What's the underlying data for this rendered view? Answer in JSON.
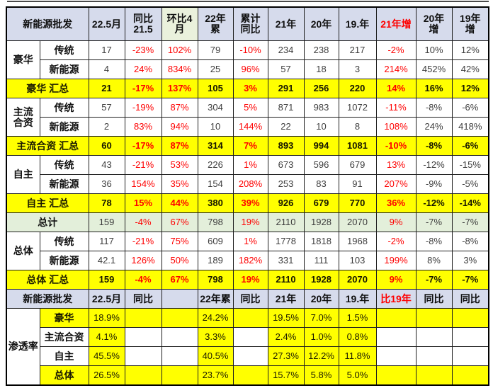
{
  "colors": {
    "header_bg": "#D6DBEC",
    "header_green_bg": "#EAF1DC",
    "total_row_bg": "#E3EFDA",
    "highlight_bg": "#FFFF00",
    "red_text": "#FE0000",
    "value_text": "#3D3D3D",
    "label_text": "#101010"
  },
  "chart_data": {
    "type": "table",
    "title": "新能源批发",
    "red_value_cols": [
      1,
      2,
      4,
      8
    ],
    "red_header_cols": [
      8
    ],
    "green_header_cols": [
      2
    ],
    "rows": [
      {
        "kind": "header1",
        "label": "新能源批发",
        "cols": [
          "22.5月",
          "同比\n21.5",
          "环比4\n月",
          "22年\n累",
          "累计\n同比",
          "21年",
          "20年",
          "19.年",
          "21年增",
          "20年\n增",
          "19年\n增"
        ]
      },
      {
        "kind": "seg",
        "group": "豪华",
        "group_span": 2,
        "label": "传统",
        "values": [
          "17",
          "-23%",
          "102%",
          "79",
          "-10%",
          "234",
          "238",
          "217",
          "-2%",
          "10%",
          "12%"
        ]
      },
      {
        "kind": "seg",
        "label": "新能源",
        "values": [
          "4",
          "24%",
          "834%",
          "25",
          "96%",
          "57",
          "18",
          "3",
          "214%",
          "452%",
          "42%"
        ]
      },
      {
        "kind": "summary",
        "label": "豪华 汇总",
        "values": [
          "21",
          "-17%",
          "137%",
          "105",
          "3%",
          "291",
          "256",
          "220",
          "14%",
          "16%",
          "12%"
        ]
      },
      {
        "kind": "seg",
        "group": "主流\n合资",
        "group_span": 2,
        "label": "传统",
        "values": [
          "57",
          "-19%",
          "87%",
          "304",
          "5%",
          "871",
          "983",
          "1072",
          "-11%",
          "-8%",
          "-6%"
        ]
      },
      {
        "kind": "seg",
        "label": "新能源",
        "values": [
          "2",
          "83%",
          "94%",
          "10",
          "144%",
          "22",
          "10",
          "8",
          "108%",
          "24%",
          "418%"
        ]
      },
      {
        "kind": "summary",
        "label": "主流合资 汇总",
        "values": [
          "60",
          "-17%",
          "87%",
          "314",
          "7%",
          "893",
          "994",
          "1081",
          "-10%",
          "-8%",
          "-6%"
        ]
      },
      {
        "kind": "seg",
        "group": "自主",
        "group_span": 2,
        "label": "传统",
        "values": [
          "43",
          "-21%",
          "53%",
          "226",
          "1%",
          "673",
          "596",
          "679",
          "13%",
          "-12%",
          "-15%"
        ]
      },
      {
        "kind": "seg",
        "label": "新能源",
        "values": [
          "36",
          "154%",
          "35%",
          "154",
          "208%",
          "253",
          "83",
          "91",
          "207%",
          "-9%",
          "-5%"
        ]
      },
      {
        "kind": "summary",
        "label": "自主 汇总",
        "values": [
          "78",
          "15%",
          "44%",
          "380",
          "39%",
          "926",
          "679",
          "770",
          "36%",
          "-12%",
          "-14%"
        ]
      },
      {
        "kind": "total",
        "label": "总计",
        "values": [
          "159",
          "-4%",
          "67%",
          "798",
          "19%",
          "2110",
          "1928",
          "2070",
          "9%",
          "-7%",
          "-7%"
        ]
      },
      {
        "kind": "seg",
        "group": "总体",
        "group_span": 2,
        "label": "传统",
        "values": [
          "117",
          "-21%",
          "75%",
          "609",
          "1%",
          "1778",
          "1818",
          "1968",
          "-2%",
          "-8%",
          "-8%"
        ]
      },
      {
        "kind": "seg",
        "label": "新能源",
        "values": [
          "42.1",
          "126%",
          "50%",
          "189",
          "182%",
          "331",
          "111",
          "103",
          "199%",
          "8%",
          "3%"
        ]
      },
      {
        "kind": "summary",
        "label": "总体 汇总",
        "values": [
          "159",
          "-4%",
          "67%",
          "798",
          "19%",
          "2110",
          "1928",
          "2070",
          "9%",
          "-7%",
          "-7%"
        ]
      },
      {
        "kind": "header2",
        "label": "新能源批发",
        "cols": [
          "22.5月",
          "同比",
          "",
          "22年累",
          "同比",
          "21年",
          "20年",
          "19.年",
          "比19年",
          "同比",
          "同比"
        ]
      },
      {
        "kind": "pen",
        "group": "渗透率",
        "group_span": 4,
        "label": "豪华",
        "highlight": true,
        "values": [
          "18.9%",
          "",
          "",
          "24.2%",
          "",
          "19.5%",
          "7.0%",
          "1.5%",
          "",
          "",
          ""
        ]
      },
      {
        "kind": "pen",
        "label": "主流合资",
        "highlight": false,
        "values": [
          "4.1%",
          "",
          "",
          "3.3%",
          "",
          "2.4%",
          "1.0%",
          "0.8%",
          "",
          "",
          ""
        ]
      },
      {
        "kind": "pen",
        "label": "自主",
        "highlight": false,
        "values": [
          "45.5%",
          "",
          "",
          "40.5%",
          "",
          "27.3%",
          "12.2%",
          "11.8%",
          "",
          "",
          ""
        ]
      },
      {
        "kind": "pen",
        "label": "总体",
        "highlight": true,
        "values": [
          "26.5%",
          "",
          "",
          "23.7%",
          "",
          "15.7%",
          "5.8%",
          "5.0%",
          "",
          "",
          ""
        ]
      }
    ]
  }
}
